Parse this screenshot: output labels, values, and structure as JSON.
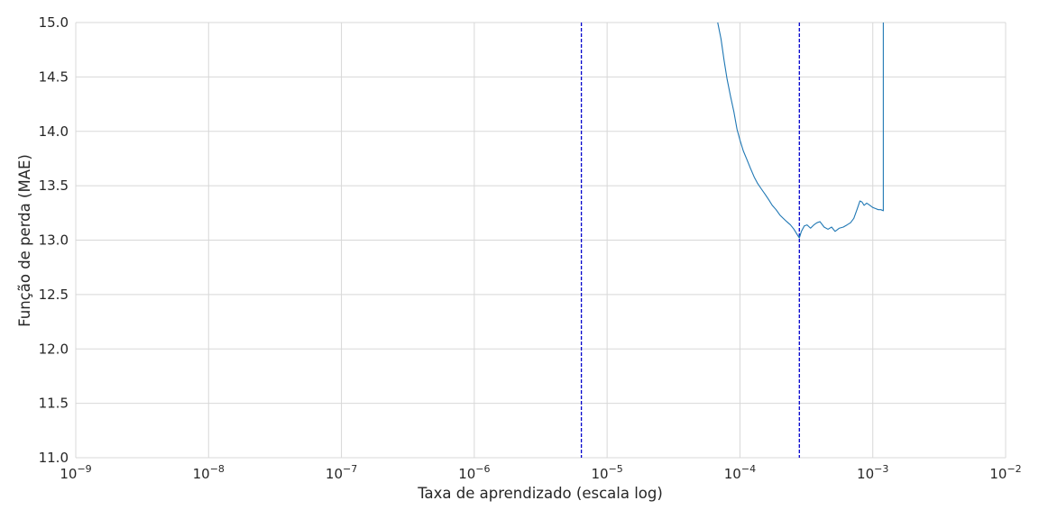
{
  "chart_data": {
    "type": "line",
    "title": "",
    "xlabel": "Taxa de aprendizado (escala log)",
    "ylabel": "Função de perda (MAE)",
    "xscale": "log",
    "xlim": [
      1e-09,
      0.01
    ],
    "ylim": [
      11.0,
      15.0
    ],
    "grid": true,
    "x_ticks": [
      {
        "base": "10",
        "exp": "−9"
      },
      {
        "base": "10",
        "exp": "−8"
      },
      {
        "base": "10",
        "exp": "−7"
      },
      {
        "base": "10",
        "exp": "−6"
      },
      {
        "base": "10",
        "exp": "−5"
      },
      {
        "base": "10",
        "exp": "−4"
      },
      {
        "base": "10",
        "exp": "−3"
      },
      {
        "base": "10",
        "exp": "−2"
      }
    ],
    "y_ticks": [
      "11.0",
      "11.5",
      "12.0",
      "12.5",
      "13.0",
      "13.5",
      "14.0",
      "14.5",
      "15.0"
    ],
    "series": [
      {
        "color": "#1f77b4",
        "x": [
          6.8e-05,
          7.2e-05,
          7.6e-05,
          8e-05,
          8.5e-05,
          9e-05,
          9.5e-05,
          0.0001,
          0.000106,
          0.000112,
          0.00012,
          0.000128,
          0.000136,
          0.000145,
          0.000155,
          0.000165,
          0.000175,
          0.000187,
          0.0002,
          0.000212,
          0.000225,
          0.00024,
          0.000255,
          0.00027,
          0.00028,
          0.00029,
          0.000305,
          0.00032,
          0.00034,
          0.00036,
          0.00038,
          0.0004,
          0.00043,
          0.00046,
          0.00049,
          0.00052,
          0.00056,
          0.0006,
          0.00064,
          0.00068,
          0.00072,
          0.00076,
          0.0008,
          0.00083,
          0.00086,
          0.0009,
          0.00095,
          0.001,
          0.00105,
          0.0011,
          0.00115,
          0.0012,
          0.0012,
          0.0012
        ],
        "y": [
          15.0,
          14.85,
          14.65,
          14.48,
          14.32,
          14.18,
          14.02,
          13.92,
          13.82,
          13.75,
          13.66,
          13.58,
          13.52,
          13.47,
          13.42,
          13.37,
          13.32,
          13.28,
          13.23,
          13.2,
          13.17,
          13.14,
          13.1,
          13.05,
          13.02,
          13.08,
          13.13,
          13.14,
          13.11,
          13.14,
          13.16,
          13.17,
          13.12,
          13.1,
          13.12,
          13.08,
          13.11,
          13.12,
          13.14,
          13.16,
          13.2,
          13.28,
          13.36,
          13.35,
          13.32,
          13.34,
          13.32,
          13.3,
          13.29,
          13.28,
          13.28,
          13.27,
          14.2,
          15.0
        ]
      }
    ],
    "vlines": [
      {
        "x": 6.4e-06,
        "color": "#0000cc",
        "style": "dashed"
      },
      {
        "x": 0.00028,
        "color": "#0000cc",
        "style": "dashed"
      }
    ],
    "colors": {
      "grid": "#d8d8d8",
      "text": "#262626"
    }
  }
}
